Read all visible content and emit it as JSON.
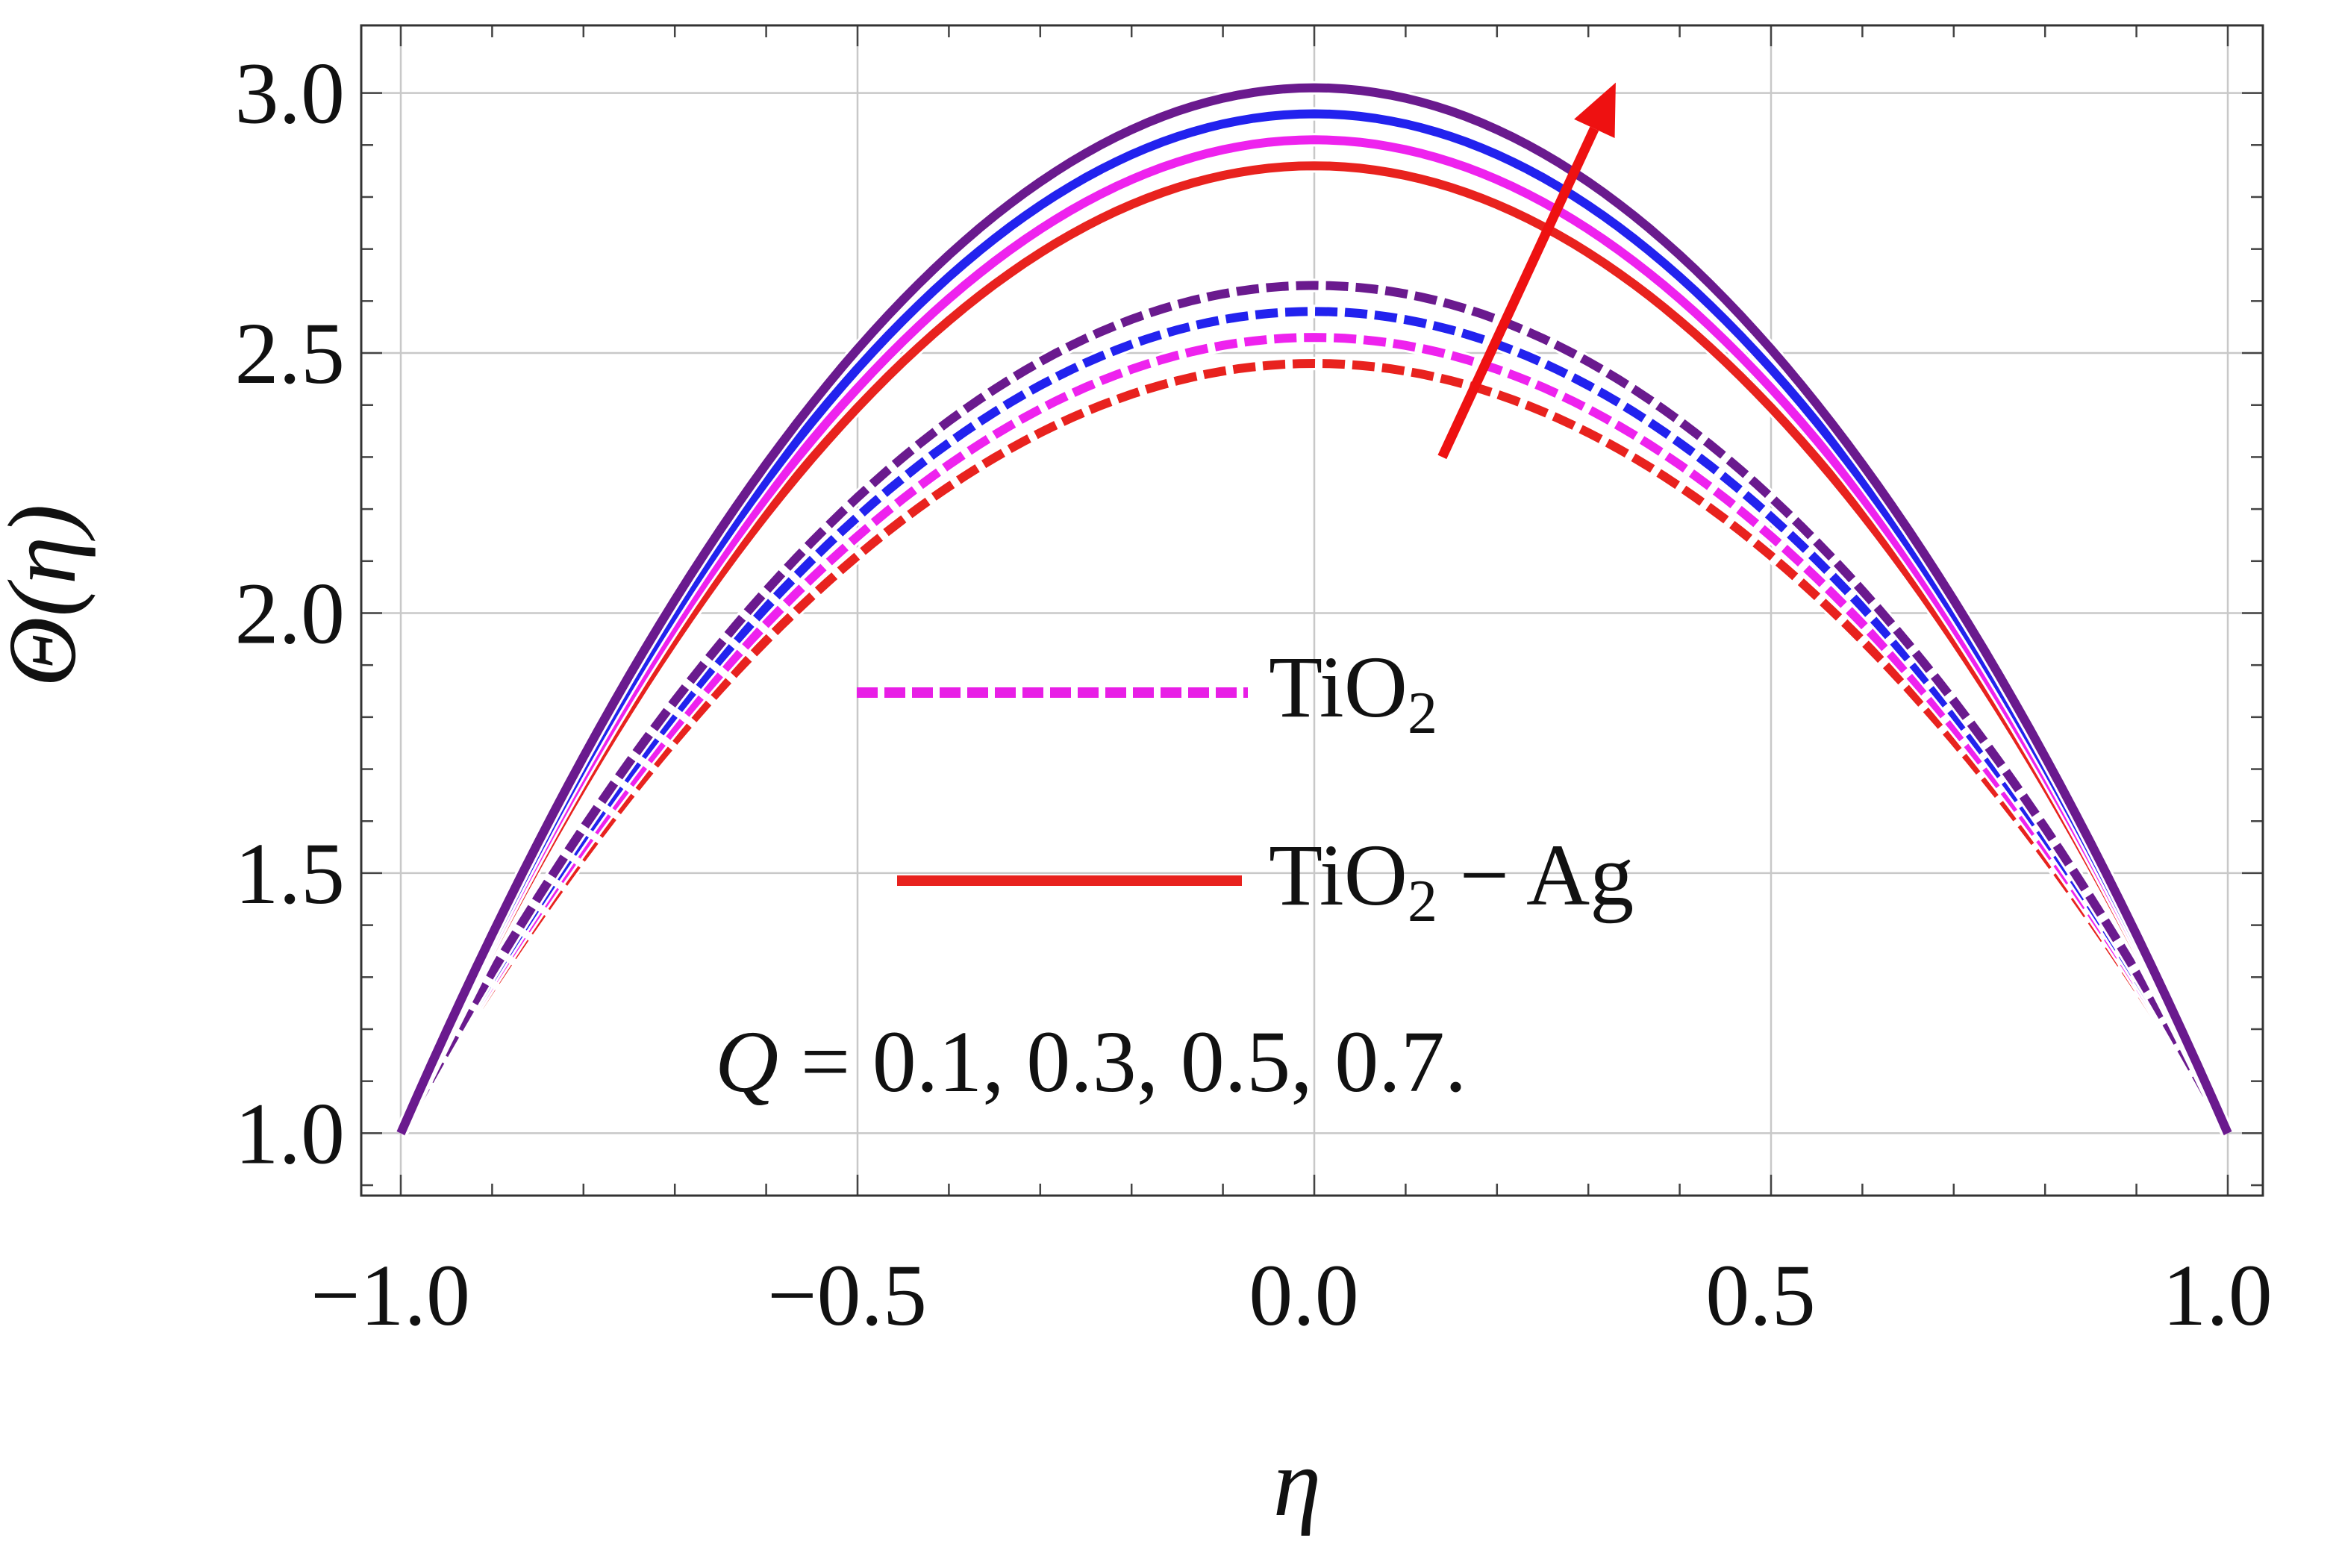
{
  "chart_data": {
    "type": "line",
    "xlabel": "η",
    "ylabel": "Θ(η)",
    "xlim": [
      -1.0,
      1.0
    ],
    "ylim": [
      0.88,
      3.13
    ],
    "xticks": [
      -1.0,
      -0.5,
      0.0,
      0.5,
      1.0
    ],
    "xtick_labels": [
      "−1.0",
      "−0.5",
      "0.0",
      "0.5",
      "1.0"
    ],
    "yticks": [
      1.0,
      1.5,
      2.0,
      2.5,
      3.0
    ],
    "ytick_labels": [
      "1.0",
      "1.5",
      "2.0",
      "2.5",
      "3.0"
    ],
    "grid": true,
    "legend": {
      "position": "center",
      "entries": [
        {
          "label_main": "TiO",
          "label_sub": "2",
          "label_tail": "",
          "style": "dashed",
          "color": "#e81ee6"
        },
        {
          "label_main": "TiO",
          "label_sub": "2",
          "label_tail": " − Ag",
          "style": "solid",
          "color": "#e8221e"
        }
      ]
    },
    "annotation": {
      "q_symbol": "Q",
      "text": " = 0.1, 0.3, 0.5, 0.7.",
      "arrow_color": "#ee1111",
      "arrow_from": [
        0.14,
        2.3
      ],
      "arrow_to": [
        0.33,
        3.02
      ]
    },
    "series": [
      {
        "fluid": "TiO2-Ag",
        "Q": 0.1,
        "style": "solid",
        "color": "#e8221e",
        "x": [
          -1.0,
          0.0,
          1.0
        ],
        "y": [
          1.0,
          2.86,
          1.0
        ]
      },
      {
        "fluid": "TiO2-Ag",
        "Q": 0.3,
        "style": "solid",
        "color": "#ee22ee",
        "x": [
          -1.0,
          0.0,
          1.0
        ],
        "y": [
          1.0,
          2.91,
          1.0
        ]
      },
      {
        "fluid": "TiO2-Ag",
        "Q": 0.5,
        "style": "solid",
        "color": "#2222ee",
        "x": [
          -1.0,
          0.0,
          1.0
        ],
        "y": [
          1.0,
          2.96,
          1.0
        ]
      },
      {
        "fluid": "TiO2-Ag",
        "Q": 0.7,
        "style": "solid",
        "color": "#6a1a8e",
        "x": [
          -1.0,
          0.0,
          1.0
        ],
        "y": [
          1.0,
          3.01,
          1.0
        ]
      },
      {
        "fluid": "TiO2",
        "Q": 0.1,
        "style": "dashed",
        "color": "#e8221e",
        "x": [
          -1.0,
          0.0,
          1.0
        ],
        "y": [
          1.0,
          2.48,
          1.0
        ]
      },
      {
        "fluid": "TiO2",
        "Q": 0.3,
        "style": "dashed",
        "color": "#ee22ee",
        "x": [
          -1.0,
          0.0,
          1.0
        ],
        "y": [
          1.0,
          2.53,
          1.0
        ]
      },
      {
        "fluid": "TiO2",
        "Q": 0.5,
        "style": "dashed",
        "color": "#2222ee",
        "x": [
          -1.0,
          0.0,
          1.0
        ],
        "y": [
          1.0,
          2.58,
          1.0
        ]
      },
      {
        "fluid": "TiO2",
        "Q": 0.7,
        "style": "dashed",
        "color": "#6a1a8e",
        "x": [
          -1.0,
          0.0,
          1.0
        ],
        "y": [
          1.0,
          2.63,
          1.0
        ]
      }
    ]
  }
}
